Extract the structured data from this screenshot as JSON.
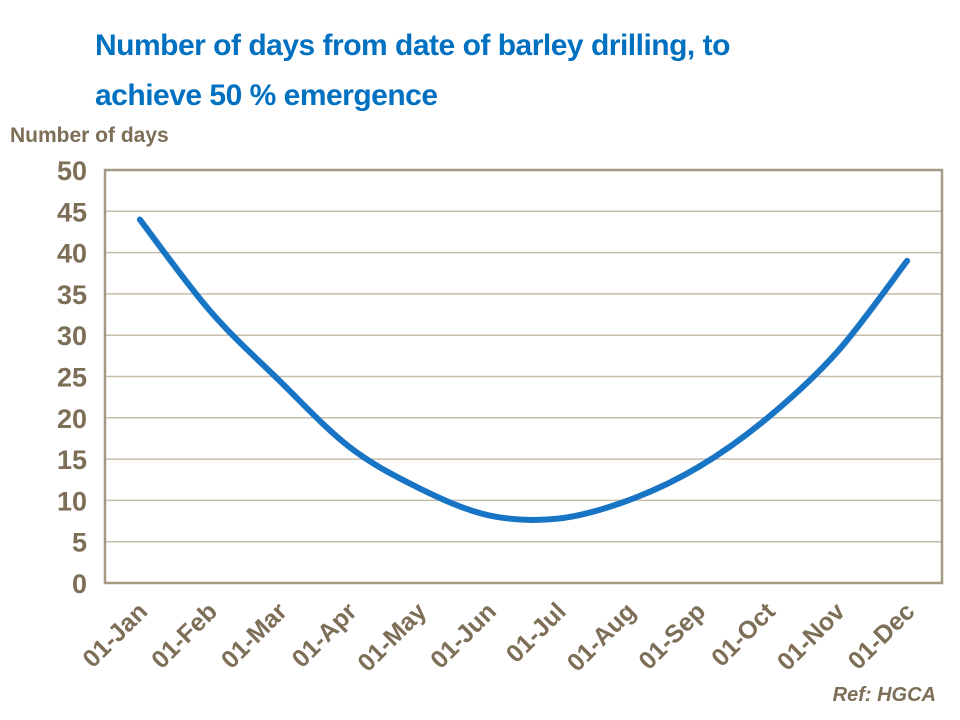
{
  "slide": {
    "title_lines": [
      "Number of days from date of barley drilling, to",
      "achieve 50 % emergence"
    ],
    "y_axis_label": "Number of days",
    "ref_note": "Ref: HGCA"
  },
  "colors": {
    "background": "#FFFFFF",
    "title": "#0070C0",
    "axis": "#7D6E57",
    "grid": "#C7BDAC",
    "border": "#A69A84",
    "line": "#1874C4"
  },
  "chart_data": {
    "type": "line",
    "title": "Number of days from date of barley drilling, to achieve 50 % emergence",
    "categories": [
      "01-Jan",
      "01-Feb",
      "01-Mar",
      "01-Apr",
      "01-May",
      "01-Jun",
      "01-Jul",
      "01-Aug",
      "01-Sep",
      "01-Oct",
      "01-Nov",
      "01-Dec"
    ],
    "values": [
      44,
      33,
      24.5,
      16.5,
      11.5,
      8.2,
      7.8,
      10,
      14,
      20,
      28,
      39
    ],
    "xlabel": "",
    "ylabel": "Number of days",
    "ylim": [
      0,
      50
    ],
    "ytick_step": 5,
    "grid": "horizontal",
    "legend": "none",
    "smooth": true,
    "annotations": [
      "Ref: HGCA"
    ]
  }
}
